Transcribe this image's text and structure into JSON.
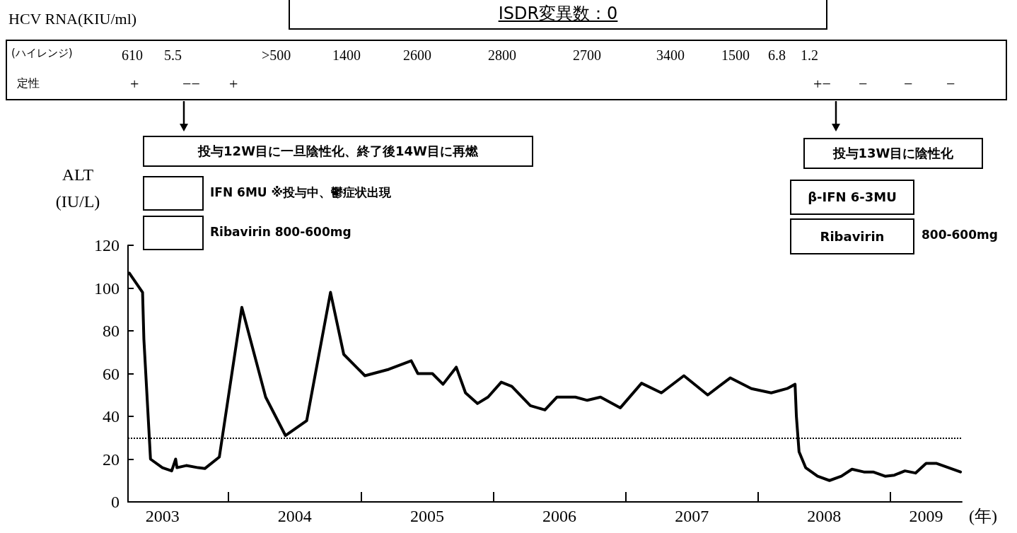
{
  "chart_data": {
    "type": "line",
    "title": "ISDR変異数：0",
    "xlabel": "(年)",
    "ylabel": "ALT\n(IU/L)",
    "x": [
      2003.25,
      2003.35,
      2003.36,
      2003.41,
      2003.5,
      2003.57,
      2003.6,
      2003.61,
      2003.68,
      2003.77,
      2003.82,
      2003.93,
      2004.1,
      2004.28,
      2004.43,
      2004.59,
      2004.77,
      2004.87,
      2005.03,
      2005.21,
      2005.38,
      2005.43,
      2005.54,
      2005.62,
      2005.72,
      2005.79,
      2005.88,
      2005.96,
      2006.06,
      2006.14,
      2006.28,
      2006.39,
      2006.48,
      2006.62,
      2006.71,
      2006.81,
      2006.96,
      2007.12,
      2007.27,
      2007.44,
      2007.62,
      2007.79,
      2007.95,
      2008.1,
      2008.22,
      2008.28,
      2008.29,
      2008.31,
      2008.36,
      2008.45,
      2008.54,
      2008.63,
      2008.71,
      2008.8,
      2008.87,
      2008.96,
      2009.03,
      2009.11,
      2009.19,
      2009.27,
      2009.35,
      2009.53
    ],
    "series": [
      {
        "color": "#000000",
        "values": [
          107,
          98,
          76,
          20,
          16,
          14.5,
          20,
          16,
          17,
          16,
          15.6,
          21,
          91,
          49,
          31,
          38,
          98,
          69,
          59,
          62,
          66,
          60,
          60,
          55,
          63,
          51,
          46,
          49,
          56,
          54,
          45,
          43,
          49,
          49,
          47.5,
          49,
          44,
          55.5,
          51,
          59,
          50,
          58,
          53,
          51,
          53,
          55,
          40,
          23.5,
          16,
          12,
          10,
          12,
          15.3,
          14,
          14,
          12,
          12.5,
          14.5,
          13.5,
          18,
          18,
          14
        ]
      }
    ],
    "xlim": [
      2003.24,
      2009.54
    ],
    "xticks": [
      {
        "value": 2003.5,
        "label": "2003"
      },
      {
        "value": 2004,
        "label": null
      },
      {
        "value": 2004.5,
        "label": "2004"
      },
      {
        "value": 2005,
        "label": null
      },
      {
        "value": 2005.5,
        "label": "2005"
      },
      {
        "value": 2006,
        "label": null
      },
      {
        "value": 2006.5,
        "label": "2006"
      },
      {
        "value": 2007,
        "label": null
      },
      {
        "value": 2007.5,
        "label": "2007"
      },
      {
        "value": 2008,
        "label": null
      },
      {
        "value": 2008.5,
        "label": "2008"
      },
      {
        "value": 2009,
        "label": null
      },
      {
        "value": 2009.27,
        "label": "2009"
      }
    ],
    "ylim": [
      0,
      120
    ],
    "yticks": [
      0,
      20,
      40,
      60,
      80,
      100,
      120
    ],
    "ref_lines": [
      {
        "axis": "y",
        "value": 30,
        "label": null,
        "color": "#000000",
        "line_style": "dotted"
      }
    ],
    "grid": false,
    "marker": "none",
    "line_style": "solid",
    "annotations": [
      "HCV RNA(KIU/ml)",
      "(ハイレンジ)",
      "610",
      "5.5",
      ">500",
      "1400",
      "2600",
      "2800",
      "2700",
      "3400",
      "1500",
      "6.8",
      "1.2",
      "定性",
      "+",
      "−−",
      "+",
      "+−",
      "−",
      "−",
      "−",
      "投与12W目に一旦陰性化、終了後14W目に再燃",
      "投与13W目に陰性化",
      "IFN 6MU ※投与中、鬱症状出現",
      "Ribavirin 800-600mg",
      "β-IFN 6-3MU",
      "Ribavirin",
      "800-600mg"
    ]
  }
}
